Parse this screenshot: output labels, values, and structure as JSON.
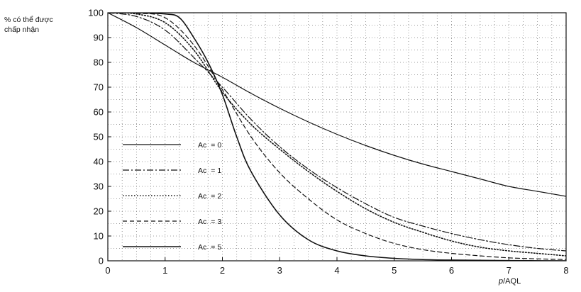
{
  "chart_data": {
    "type": "line",
    "title": "",
    "ylabel_lines": [
      "% có thể được",
      "chấp nhận"
    ],
    "xlabel": {
      "italic": "p",
      "rest": "/AQL"
    },
    "xlim": [
      0,
      8
    ],
    "ylim": [
      0,
      100
    ],
    "x_ticks": [
      0,
      1,
      2,
      3,
      4,
      5,
      6,
      7,
      8
    ],
    "y_ticks": [
      0,
      10,
      20,
      30,
      40,
      50,
      60,
      70,
      80,
      90,
      100
    ],
    "grid": true,
    "legend_position": "middle-left",
    "series": [
      {
        "name": "Ac = 0",
        "label_main": "Ac",
        "label_value": "= 0",
        "style": "solid",
        "x": [
          0,
          0.5,
          1,
          1.5,
          2,
          2.5,
          3,
          3.5,
          4,
          4.5,
          5,
          5.5,
          6,
          6.5,
          7,
          7.5,
          8
        ],
        "y": [
          100,
          94,
          87,
          80,
          74,
          67.5,
          61.5,
          56,
          51,
          46.5,
          42.5,
          39,
          36,
          33,
          30,
          28,
          26
        ]
      },
      {
        "name": "Ac = 1",
        "label_main": "Ac",
        "label_value": "= 1",
        "style": "dashdot",
        "x": [
          0,
          0.5,
          1,
          1.5,
          2,
          2.5,
          3,
          3.5,
          4,
          4.5,
          5,
          5.5,
          6,
          6.5,
          7,
          7.5,
          8
        ],
        "y": [
          100,
          98.5,
          93,
          82,
          70,
          57,
          46,
          37,
          29.5,
          23,
          17.5,
          14,
          11,
          8.5,
          6.5,
          5,
          4
        ]
      },
      {
        "name": "Ac = 2",
        "label_main": "Ac",
        "label_value": "= 2",
        "style": "dotted",
        "x": [
          0,
          0.5,
          1,
          1.5,
          2,
          2.5,
          3,
          3.5,
          4,
          4.5,
          5,
          5.5,
          6,
          6.5,
          7,
          7.5,
          8
        ],
        "y": [
          100,
          99.5,
          96,
          85,
          68,
          55,
          45,
          36,
          28,
          21,
          15.5,
          11.5,
          8,
          5.5,
          4,
          3,
          2
        ]
      },
      {
        "name": "Ac = 3",
        "label_main": "Ac",
        "label_value": "= 3",
        "style": "dashed",
        "x": [
          0,
          0.5,
          1,
          1.5,
          2,
          2.5,
          3,
          3.5,
          4,
          4.5,
          5,
          5.5,
          6,
          6.5,
          7,
          7.5,
          8
        ],
        "y": [
          100,
          99.8,
          98,
          87,
          69,
          50,
          35.5,
          25,
          16.5,
          11,
          7,
          4.5,
          3,
          2,
          1.2,
          0.8,
          0.5
        ]
      },
      {
        "name": "Ac = 5",
        "label_main": "Ac",
        "label_value": "= 5",
        "style": "solid-heavy",
        "x": [
          0,
          0.5,
          1,
          1.25,
          1.5,
          1.75,
          2,
          2.25,
          2.5,
          3,
          3.5,
          4,
          4.5,
          5,
          5.5,
          6,
          7,
          8
        ],
        "y": [
          100,
          100,
          99.5,
          98,
          90,
          80,
          67,
          50,
          36,
          18.5,
          8.5,
          4,
          2,
          1,
          0.5,
          0.3,
          0.1,
          0
        ]
      }
    ]
  }
}
